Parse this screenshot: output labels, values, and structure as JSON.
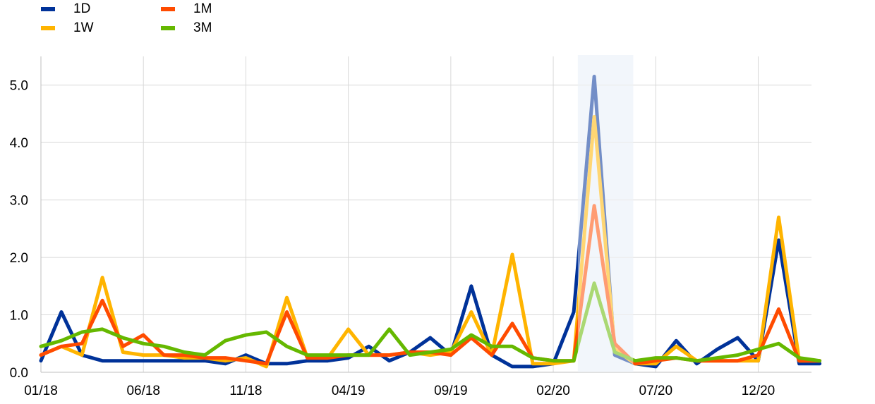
{
  "legend": [
    {
      "label": "1D",
      "color": "#003299"
    },
    {
      "label": "1W",
      "color": "#FFB400"
    },
    {
      "label": "1M",
      "color": "#FF4B00"
    },
    {
      "label": "3M",
      "color": "#65B800"
    }
  ],
  "chart_data": {
    "type": "line",
    "title": "",
    "xlabel": "",
    "ylabel": "",
    "x_ticks": [
      "01/18",
      "06/18",
      "11/18",
      "04/19",
      "09/19",
      "02/20",
      "07/20",
      "12/20"
    ],
    "y_ticks": [
      "0.0",
      "1.0",
      "2.0",
      "3.0",
      "4.0",
      "5.0"
    ],
    "ylim": [
      0,
      5.5
    ],
    "xlim": [
      "01/18",
      "03/21"
    ],
    "grid": true,
    "legend_position": "top-left",
    "shaded_period": {
      "start": "03/20",
      "end": "05/20",
      "color": "#E8EEF7"
    },
    "series": [
      {
        "name": "1D",
        "color": "#003299",
        "x": [
          "01/18",
          "02/18",
          "03/18",
          "04/18",
          "05/18",
          "06/18",
          "07/18",
          "08/18",
          "09/18",
          "10/18",
          "11/18",
          "12/18",
          "01/19",
          "02/19",
          "03/19",
          "04/19",
          "05/19",
          "06/19",
          "07/19",
          "08/19",
          "09/19",
          "10/19",
          "11/19",
          "12/19",
          "01/20",
          "02/20",
          "03/20",
          "04/20",
          "05/20",
          "06/20",
          "07/20",
          "08/20",
          "09/20",
          "10/20",
          "11/20",
          "12/20",
          "01/21",
          "02/21",
          "03/21"
        ],
        "values": [
          0.2,
          1.05,
          0.3,
          0.2,
          0.2,
          0.2,
          0.2,
          0.2,
          0.2,
          0.15,
          0.3,
          0.15,
          0.15,
          0.2,
          0.2,
          0.25,
          0.45,
          0.2,
          0.35,
          0.6,
          0.3,
          1.5,
          0.3,
          0.1,
          0.1,
          0.15,
          1.05,
          5.15,
          0.3,
          0.15,
          0.1,
          0.55,
          0.15,
          0.4,
          0.6,
          0.2,
          2.3,
          0.15,
          0.15
        ]
      },
      {
        "name": "1W",
        "color": "#FFB400",
        "x": [
          "01/18",
          "02/18",
          "03/18",
          "04/18",
          "05/18",
          "06/18",
          "07/18",
          "08/18",
          "09/18",
          "10/18",
          "11/18",
          "12/18",
          "01/19",
          "02/19",
          "03/19",
          "04/19",
          "05/19",
          "06/19",
          "07/19",
          "08/19",
          "09/19",
          "10/19",
          "11/19",
          "12/19",
          "01/20",
          "02/20",
          "03/20",
          "04/20",
          "05/20",
          "06/20",
          "07/20",
          "08/20",
          "09/20",
          "10/20",
          "11/20",
          "12/20",
          "01/21",
          "02/21",
          "03/21"
        ],
        "values": [
          0.3,
          0.45,
          0.3,
          1.65,
          0.35,
          0.3,
          0.3,
          0.25,
          0.25,
          0.2,
          0.25,
          0.1,
          1.3,
          0.25,
          0.25,
          0.75,
          0.3,
          0.3,
          0.35,
          0.3,
          0.35,
          1.05,
          0.3,
          2.05,
          0.15,
          0.15,
          0.2,
          4.45,
          0.4,
          0.15,
          0.15,
          0.45,
          0.2,
          0.2,
          0.2,
          0.2,
          2.7,
          0.2,
          0.2
        ]
      },
      {
        "name": "1M",
        "color": "#FF4B00",
        "x": [
          "01/18",
          "02/18",
          "03/18",
          "04/18",
          "05/18",
          "06/18",
          "07/18",
          "08/18",
          "09/18",
          "10/18",
          "11/18",
          "12/18",
          "01/19",
          "02/19",
          "03/19",
          "04/19",
          "05/19",
          "06/19",
          "07/19",
          "08/19",
          "09/19",
          "10/19",
          "11/19",
          "12/19",
          "01/20",
          "02/20",
          "03/20",
          "04/20",
          "05/20",
          "06/20",
          "07/20",
          "08/20",
          "09/20",
          "10/20",
          "11/20",
          "12/20",
          "01/21",
          "02/21",
          "03/21"
        ],
        "values": [
          0.3,
          0.45,
          0.5,
          1.25,
          0.45,
          0.65,
          0.3,
          0.3,
          0.25,
          0.25,
          0.2,
          0.15,
          1.05,
          0.25,
          0.25,
          0.3,
          0.3,
          0.3,
          0.35,
          0.35,
          0.3,
          0.6,
          0.3,
          0.85,
          0.25,
          0.2,
          0.2,
          2.9,
          0.5,
          0.15,
          0.2,
          0.25,
          0.2,
          0.2,
          0.2,
          0.3,
          1.1,
          0.2,
          0.2
        ]
      },
      {
        "name": "3M",
        "color": "#65B800",
        "x": [
          "01/18",
          "02/18",
          "03/18",
          "04/18",
          "05/18",
          "06/18",
          "07/18",
          "08/18",
          "09/18",
          "10/18",
          "11/18",
          "12/18",
          "01/19",
          "02/19",
          "03/19",
          "04/19",
          "05/19",
          "06/19",
          "07/19",
          "08/19",
          "09/19",
          "10/19",
          "11/19",
          "12/19",
          "01/20",
          "02/20",
          "03/20",
          "04/20",
          "05/20",
          "06/20",
          "07/20",
          "08/20",
          "09/20",
          "10/20",
          "11/20",
          "12/20",
          "01/21",
          "02/21",
          "03/21"
        ],
        "values": [
          0.45,
          0.55,
          0.7,
          0.75,
          0.6,
          0.5,
          0.45,
          0.35,
          0.3,
          0.55,
          0.65,
          0.7,
          0.45,
          0.3,
          0.3,
          0.3,
          0.3,
          0.75,
          0.3,
          0.35,
          0.4,
          0.65,
          0.45,
          0.45,
          0.25,
          0.2,
          0.2,
          1.55,
          0.35,
          0.2,
          0.25,
          0.25,
          0.2,
          0.25,
          0.3,
          0.4,
          0.5,
          0.25,
          0.2
        ]
      }
    ]
  }
}
